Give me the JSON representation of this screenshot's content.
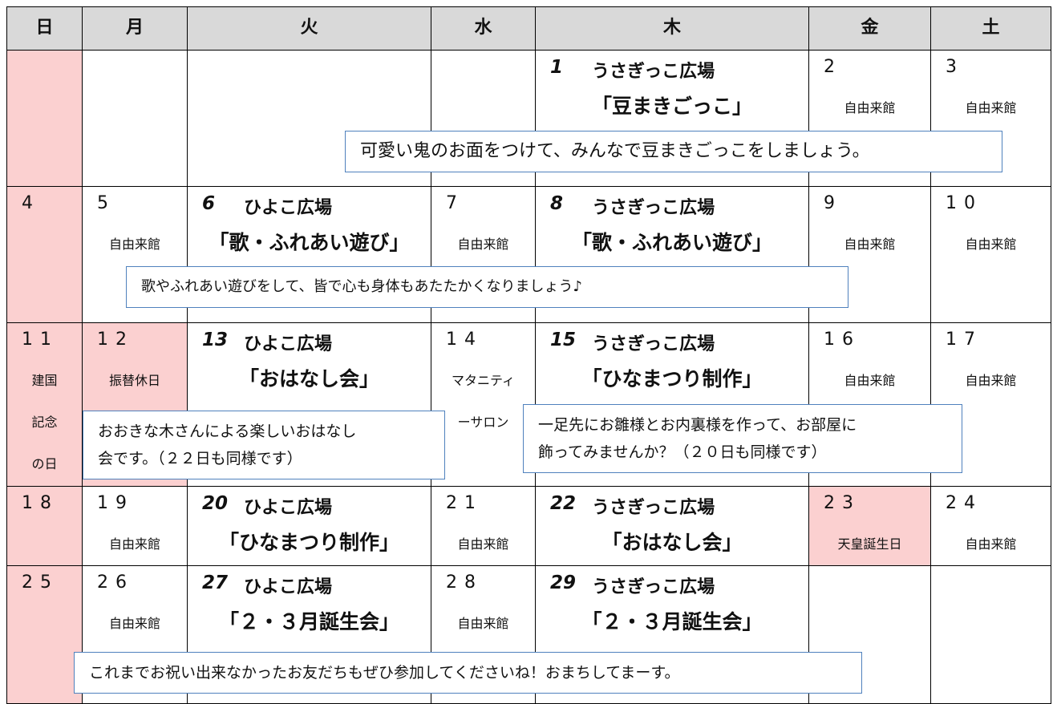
{
  "header": [
    "日",
    "月",
    "火",
    "水",
    "木",
    "金",
    "土"
  ],
  "weeks": [
    {
      "cells": [
        {},
        {},
        {},
        {},
        {
          "day": "1",
          "title": "うさぎっこ広場",
          "lines": [
            "「豆まきごっこ」"
          ]
        },
        {
          "day": "2",
          "lines": [
            "自由来館"
          ]
        },
        {
          "day": "3",
          "lines": [
            "自由来館"
          ]
        }
      ]
    },
    {
      "cells": [
        {
          "day": "4"
        },
        {
          "day": "5",
          "lines": [
            "自由来館"
          ]
        },
        {
          "day": "6",
          "title": "ひよこ広場",
          "lines": [
            "「歌・ふれあい遊び」"
          ]
        },
        {
          "day": "7",
          "lines": [
            "自由来館"
          ]
        },
        {
          "day": "8",
          "title": "うさぎっこ広場",
          "lines": [
            "「歌・ふれあい遊び」"
          ]
        },
        {
          "day": "9",
          "lines": [
            "自由来館"
          ]
        },
        {
          "day": "10",
          "lines": [
            "自由来館"
          ]
        }
      ]
    },
    {
      "cells": [
        {
          "day": "11",
          "lines": [
            "建国",
            "記念",
            "の日"
          ]
        },
        {
          "day": "12",
          "lines": [
            "振替休日"
          ],
          "holiday": true
        },
        {
          "day": "13",
          "title": "ひよこ広場",
          "lines": [
            "「おはなし会」"
          ]
        },
        {
          "day": "14",
          "lines": [
            "マタニティ",
            "ーサロン"
          ]
        },
        {
          "day": "15",
          "title": "うさぎっこ広場",
          "lines": [
            "「ひなまつり制作」"
          ]
        },
        {
          "day": "16",
          "lines": [
            "自由来館"
          ]
        },
        {
          "day": "17",
          "lines": [
            "自由来館"
          ]
        }
      ]
    },
    {
      "cells": [
        {
          "day": "18"
        },
        {
          "day": "19",
          "lines": [
            "自由来館"
          ]
        },
        {
          "day": "20",
          "title": "ひよこ広場",
          "lines": [
            "「ひなまつり制作」"
          ]
        },
        {
          "day": "21",
          "lines": [
            "自由来館"
          ]
        },
        {
          "day": "22",
          "title": "うさぎっこ広場",
          "lines": [
            "「おはなし会」"
          ]
        },
        {
          "day": "23",
          "lines": [
            "天皇誕生日"
          ],
          "holiday": true
        },
        {
          "day": "24",
          "lines": [
            "自由来館"
          ]
        }
      ]
    },
    {
      "cells": [
        {
          "day": "25"
        },
        {
          "day": "26",
          "lines": [
            "自由来館"
          ]
        },
        {
          "day": "27",
          "title": "ひよこ広場",
          "lines": [
            "「２・３月誕生会」"
          ]
        },
        {
          "day": "28",
          "lines": [
            "自由来館"
          ]
        },
        {
          "day": "29",
          "title": "うさぎっこ広場",
          "lines": [
            "「２・３月誕生会」"
          ]
        },
        {},
        {}
      ]
    }
  ],
  "notes": [
    {
      "lines": [
        "可愛い鬼のお面をつけて、みんなで豆まきごっこをしましょう。"
      ]
    },
    {
      "lines": [
        "歌やふれあい遊びをして、皆で心も身体もあたたかくなりましょう♪"
      ]
    },
    {
      "lines": [
        "おおきな木さんによる楽しいおはなし",
        "会です。（２２日も同様です）"
      ]
    },
    {
      "lines": [
        "一足先にお雛様とお内裏様を作って、お部屋に",
        "飾ってみませんか？（２０日も同様です）"
      ]
    },
    {
      "lines": [
        "これまでお祝い出来なかったお友だちもぜひ参加してくださいね！おまちしてまーす。"
      ]
    }
  ]
}
